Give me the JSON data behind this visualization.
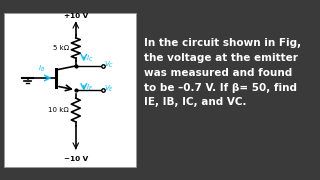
{
  "bg_color": "#3a3a3a",
  "circuit_bg": "#ffffff",
  "text_color": "#ffffff",
  "cyan_color": "#00bfff",
  "title_text": "In the circuit shown in Fig,\nthe voltage at the emitter\nwas measured and found\nto be –0.7 V. If β= 50, find\nIE, IB, IC, and VC.",
  "vcc": "+10 V",
  "vee": "-10 V",
  "r1_label": "5 kΩ",
  "r2_label": "10 kΩ"
}
